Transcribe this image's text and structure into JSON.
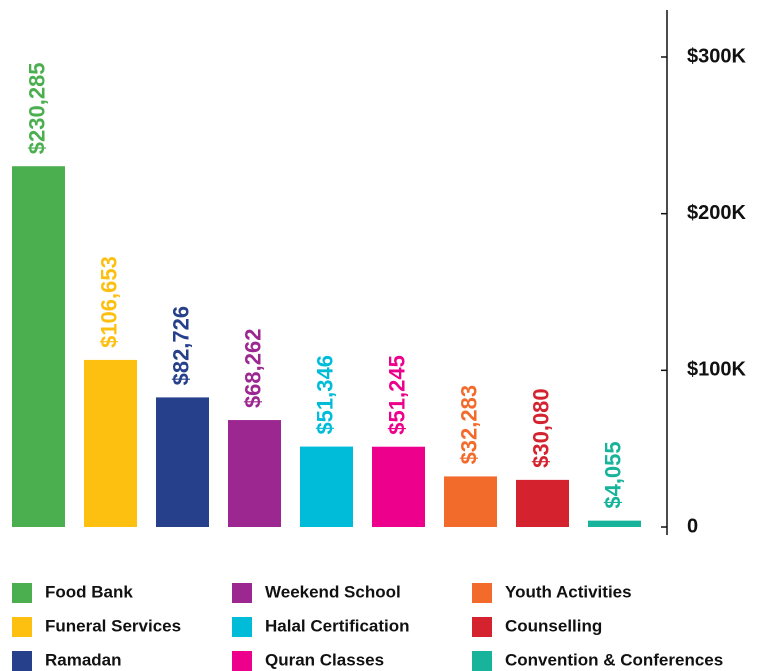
{
  "chart_data": {
    "type": "bar",
    "categories": [
      "Food Bank",
      "Funeral Services",
      "Ramadan",
      "Weekend School",
      "Halal Certification",
      "Quran Classes",
      "Youth Activities",
      "Counselling",
      "Convention & Conferences"
    ],
    "values": [
      230285,
      106653,
      82726,
      68262,
      51346,
      51245,
      32283,
      30080,
      4055
    ],
    "value_labels": [
      "$230,285",
      "$106,653",
      "$82,726",
      "$68,262",
      "$51,346",
      "$51,245",
      "$32,283",
      "$30,080",
      "$4,055"
    ],
    "colors": [
      "#4bae4f",
      "#fdc010",
      "#27408b",
      "#9c2790",
      "#00bcd9",
      "#ec008c",
      "#f26b2a",
      "#d4232f",
      "#17b39a"
    ],
    "ylim": [
      0,
      330000
    ],
    "yticks": [
      0,
      {
        "value": 100000,
        "label": "$100K"
      },
      {
        "value": 200000,
        "label": "$200K"
      },
      {
        "value": 300000,
        "label": "$300K"
      }
    ],
    "axis_side": "right"
  }
}
